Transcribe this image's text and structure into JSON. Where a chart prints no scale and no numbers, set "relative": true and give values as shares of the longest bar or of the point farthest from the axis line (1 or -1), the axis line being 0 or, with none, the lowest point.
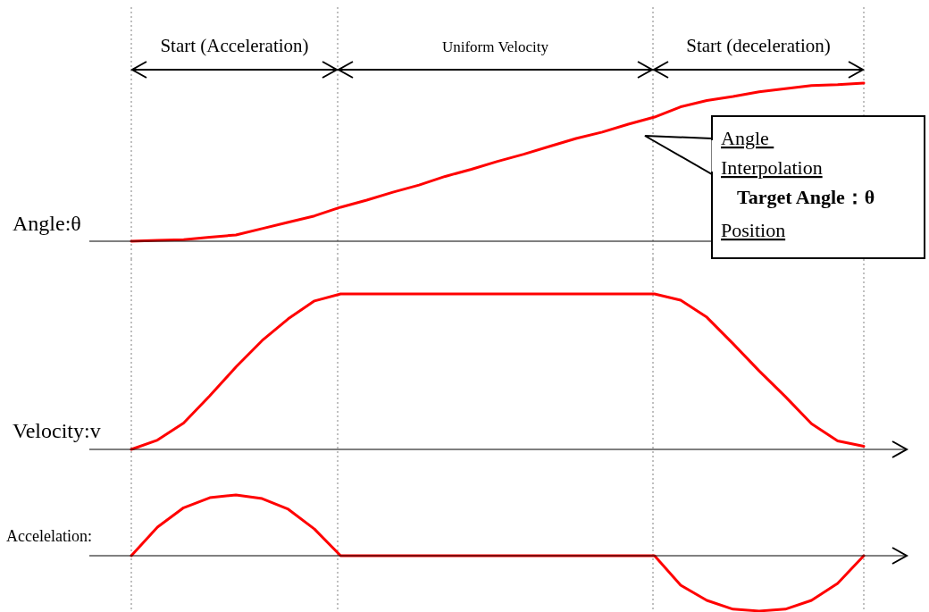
{
  "chart_data": [
    {
      "type": "line",
      "ylabel": "Angle:θ",
      "relative": true,
      "color": "#ff0000",
      "grid": "x",
      "categories": [
        null,
        null,
        null,
        null,
        null,
        null,
        null,
        null,
        null,
        null,
        null,
        null,
        null,
        null,
        null,
        null,
        null,
        null,
        null,
        null,
        null,
        null,
        null,
        null,
        null,
        null,
        null,
        null,
        null
      ],
      "values": [
        0,
        0.005,
        0.01,
        0.025,
        0.04,
        0.08,
        0.12,
        0.16,
        0.215,
        0.26,
        0.31,
        0.355,
        0.41,
        0.455,
        0.505,
        0.55,
        0.6,
        0.65,
        0.69,
        0.74,
        0.785,
        0.85,
        0.89,
        0.915,
        0.945,
        0.965,
        0.985,
        0.99,
        1
      ],
      "annotations": [
        "Start (Acceleration)",
        "Uniform Velocity",
        "Start (deceleration)",
        "Angle ",
        "Interpolation",
        "Target Angle：θ",
        "Position"
      ]
    },
    {
      "type": "line",
      "ylabel": "Velocity:v",
      "relative": true,
      "color": "#ff0000",
      "grid": "x",
      "categories": [
        null,
        null,
        null,
        null,
        null,
        null,
        null,
        null,
        null,
        null,
        null,
        null,
        null,
        null,
        null,
        null,
        null,
        null,
        null,
        null,
        null,
        null,
        null,
        null,
        null,
        null,
        null,
        null,
        null
      ],
      "values": [
        0,
        0.06,
        0.17,
        0.345,
        0.53,
        0.7,
        0.84,
        0.955,
        1,
        1,
        1,
        1,
        1,
        1,
        1,
        1,
        1,
        1,
        1,
        1,
        1,
        0.96,
        0.85,
        0.68,
        0.505,
        0.34,
        0.165,
        0.055,
        0.02
      ]
    },
    {
      "type": "line",
      "ylabel": "Accelelation:",
      "relative": true,
      "color": "#ff0000",
      "grid": "x",
      "categories": [
        null,
        null,
        null,
        null,
        null,
        null,
        null,
        null,
        null,
        null,
        null,
        null,
        null,
        null,
        null,
        null,
        null,
        null,
        null,
        null,
        null,
        null,
        null,
        null,
        null,
        null,
        null,
        null,
        null
      ],
      "values": [
        0,
        0.47,
        0.79,
        0.955,
        1,
        0.94,
        0.765,
        0.44,
        0,
        0,
        0,
        0,
        0,
        0,
        0,
        0,
        0,
        0,
        0,
        0,
        0,
        -0.485,
        -0.735,
        -0.88,
        -0.91,
        -0.88,
        -0.735,
        -0.455,
        0
      ]
    }
  ]
}
